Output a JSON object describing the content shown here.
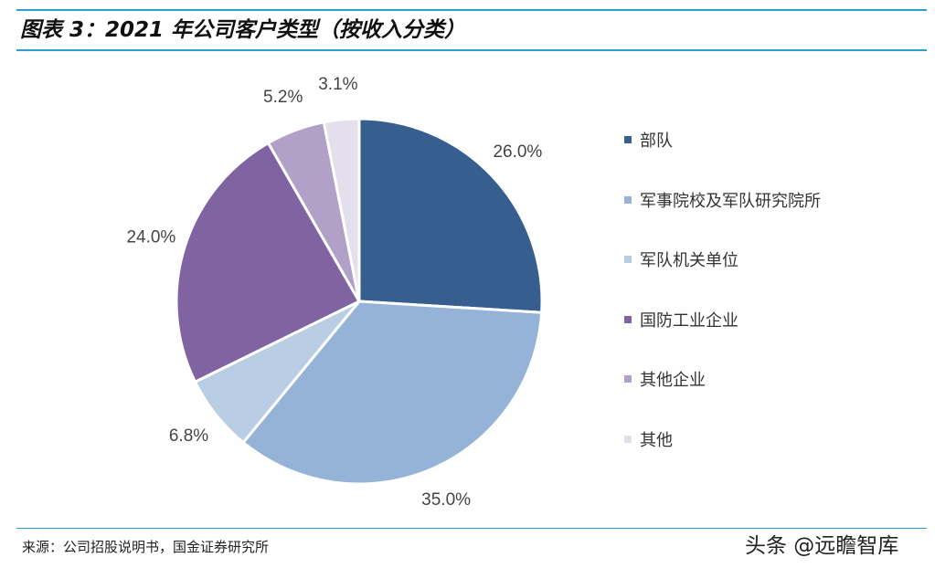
{
  "title": "图表 3：2021 年公司客户类型（按收入分类）",
  "source": "来源：公司招股说明书，国金证券研究所",
  "watermark": "头条 @远瞻智库",
  "colors": {
    "rule": "#2aa1d3"
  },
  "chart_data": {
    "type": "pie",
    "title": "图表 3：2021 年公司客户类型（按收入分类）",
    "legend_position": "right",
    "slices": [
      {
        "label": "部队",
        "value": 26.0,
        "value_label": "26.0%",
        "color": "#365f8f"
      },
      {
        "label": "军事院校及军队研究院所",
        "value": 35.0,
        "value_label": "35.0%",
        "color": "#95b3d7"
      },
      {
        "label": "军队机关单位",
        "value": 6.8,
        "value_label": "6.8%",
        "color": "#b9cde5"
      },
      {
        "label": "国防工业企业",
        "value": 24.0,
        "value_label": "24.0%",
        "color": "#8064a2"
      },
      {
        "label": "其他企业",
        "value": 5.2,
        "value_label": "5.2%",
        "color": "#b1a0c7"
      },
      {
        "label": "其他",
        "value": 3.1,
        "value_label": "3.1%",
        "color": "#e4dfec"
      }
    ]
  }
}
